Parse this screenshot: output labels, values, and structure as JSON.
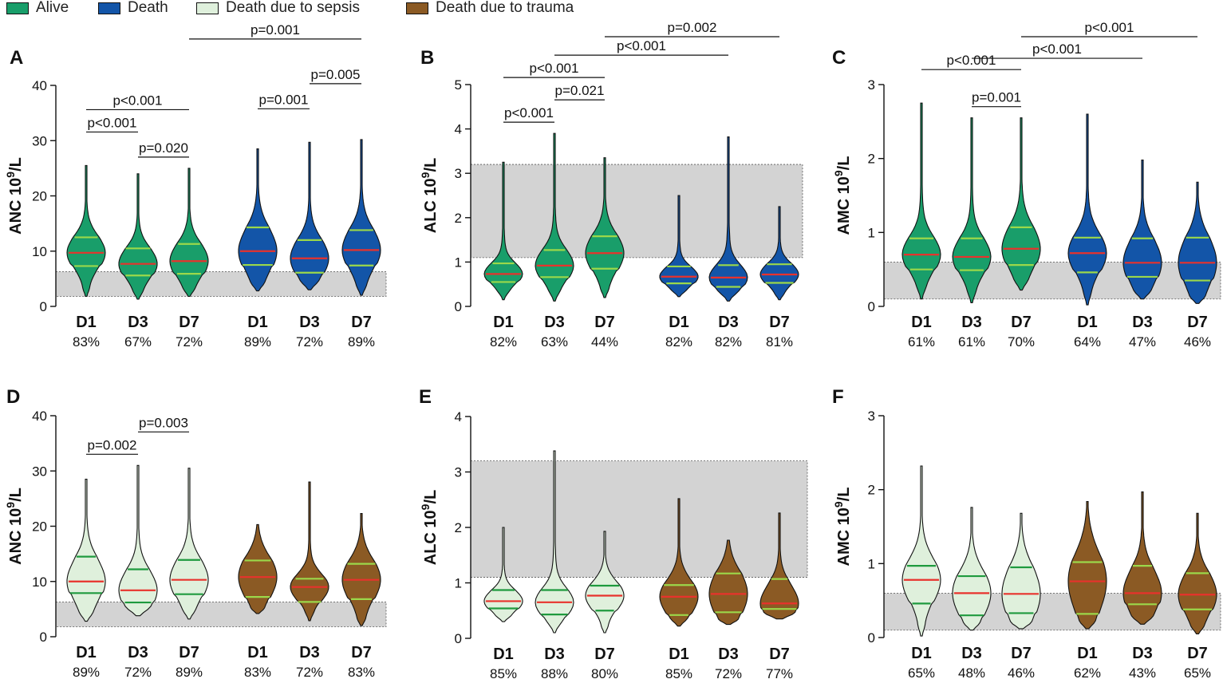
{
  "legend": {
    "entries": [
      {
        "label": "Alive",
        "color": "#199e6a"
      },
      {
        "label": "Death",
        "color": "#1355a8"
      },
      {
        "label": "Death due to sepsis",
        "color": "#dff0dc"
      },
      {
        "label": "Death due to trauma",
        "color": "#8b5a24"
      }
    ]
  },
  "colors": {
    "median_line": "#e8322c",
    "quartile_line_on_dark": "#9bd84a",
    "quartile_line_on_light": "#1f9a3e",
    "reference_band": "#d3d3d3"
  },
  "chart_data": [
    {
      "type": "violin",
      "panel": "A",
      "ylabel_main": "ANC 10",
      "ylabel_sup": "9",
      "ylabel_tail": "/L",
      "ylim": [
        0,
        40
      ],
      "yticks": [
        "0",
        "10",
        "20",
        "30",
        "40"
      ],
      "reference_band": [
        1.8,
        6.3
      ],
      "groups": [
        {
          "label": "D1",
          "percent": "83%",
          "series": "Alive",
          "min": 1.8,
          "q1": 7.3,
          "median": 9.7,
          "q3": 12.5,
          "max": 25.5
        },
        {
          "label": "D3",
          "percent": "67%",
          "series": "Alive",
          "min": 1.3,
          "q1": 5.6,
          "median": 7.7,
          "q3": 10.5,
          "max": 24.0
        },
        {
          "label": "D7",
          "percent": "72%",
          "series": "Alive",
          "min": 1.8,
          "q1": 5.9,
          "median": 8.2,
          "q3": 11.3,
          "max": 25.0
        },
        {
          "label": "D1",
          "percent": "89%",
          "series": "Death",
          "min": 2.8,
          "q1": 7.5,
          "median": 10.0,
          "q3": 14.3,
          "max": 28.5
        },
        {
          "label": "D3",
          "percent": "72%",
          "series": "Death",
          "min": 3.0,
          "q1": 6.1,
          "median": 8.7,
          "q3": 12.0,
          "max": 29.7
        },
        {
          "label": "D7",
          "percent": "89%",
          "series": "Death",
          "min": 2.0,
          "q1": 7.4,
          "median": 10.2,
          "q3": 13.8,
          "max": 30.2
        }
      ],
      "comparisons": [
        {
          "label": "p<0.001",
          "from": 0,
          "to": 1,
          "level": 1
        },
        {
          "label": "p=0.020",
          "from": 1,
          "to": 2,
          "level": 0
        },
        {
          "label": "p<0.001",
          "from": 0,
          "to": 2,
          "level": 2
        },
        {
          "label": "p=0.001",
          "from": 3,
          "to": 4,
          "level": 1
        },
        {
          "label": "p=0.005",
          "from": 4,
          "to": 5,
          "level": 2
        },
        {
          "label": "p=0.001",
          "from": 2,
          "to": 5,
          "level": 4
        }
      ]
    },
    {
      "type": "violin",
      "panel": "B",
      "ylabel_main": "ALC 10",
      "ylabel_sup": "9",
      "ylabel_tail": "/L",
      "ylim": [
        0,
        5
      ],
      "yticks": [
        "0",
        "1",
        "2",
        "3",
        "4",
        "5"
      ],
      "reference_band": [
        1.1,
        3.2
      ],
      "groups": [
        {
          "label": "D1",
          "percent": "82%",
          "series": "Alive",
          "min": 0.15,
          "q1": 0.55,
          "median": 0.73,
          "q3": 0.97,
          "max": 3.25
        },
        {
          "label": "D3",
          "percent": "63%",
          "series": "Alive",
          "min": 0.12,
          "q1": 0.66,
          "median": 0.92,
          "q3": 1.27,
          "max": 3.9
        },
        {
          "label": "D7",
          "percent": "44%",
          "series": "Alive",
          "min": 0.2,
          "q1": 0.85,
          "median": 1.2,
          "q3": 1.58,
          "max": 3.35
        },
        {
          "label": "D1",
          "percent": "82%",
          "series": "Death",
          "min": 0.22,
          "q1": 0.52,
          "median": 0.67,
          "q3": 0.9,
          "max": 2.5
        },
        {
          "label": "D3",
          "percent": "82%",
          "series": "Death",
          "min": 0.12,
          "q1": 0.44,
          "median": 0.65,
          "q3": 0.93,
          "max": 3.82
        },
        {
          "label": "D7",
          "percent": "81%",
          "series": "Death",
          "min": 0.15,
          "q1": 0.53,
          "median": 0.72,
          "q3": 0.95,
          "max": 2.25
        }
      ],
      "comparisons": [
        {
          "label": "p<0.001",
          "from": 0,
          "to": 1,
          "level": 0
        },
        {
          "label": "p=0.021",
          "from": 1,
          "to": 2,
          "level": 1
        },
        {
          "label": "p<0.001",
          "from": 0,
          "to": 2,
          "level": 2
        },
        {
          "label": "p<0.001",
          "from": 1,
          "to": 4,
          "level": 3
        },
        {
          "label": "p=0.002",
          "from": 2,
          "to": 5,
          "level": 4
        }
      ]
    },
    {
      "type": "violin",
      "panel": "C",
      "ylabel_main": "AMC 10",
      "ylabel_sup": "9",
      "ylabel_tail": "/L",
      "ylim": [
        0,
        3
      ],
      "yticks": [
        "0",
        "1",
        "2",
        "3"
      ],
      "reference_band": [
        0.1,
        0.6
      ],
      "groups": [
        {
          "label": "D1",
          "percent": "61%",
          "series": "Alive",
          "min": 0.1,
          "q1": 0.5,
          "median": 0.7,
          "q3": 0.92,
          "max": 2.75
        },
        {
          "label": "D3",
          "percent": "61%",
          "series": "Alive",
          "min": 0.05,
          "q1": 0.49,
          "median": 0.67,
          "q3": 0.92,
          "max": 2.55
        },
        {
          "label": "D7",
          "percent": "70%",
          "series": "Alive",
          "min": 0.22,
          "q1": 0.56,
          "median": 0.78,
          "q3": 1.07,
          "max": 2.55
        },
        {
          "label": "D1",
          "percent": "64%",
          "series": "Death",
          "min": 0.02,
          "q1": 0.46,
          "median": 0.72,
          "q3": 0.93,
          "max": 2.6
        },
        {
          "label": "D3",
          "percent": "47%",
          "series": "Death",
          "min": 0.1,
          "q1": 0.4,
          "median": 0.59,
          "q3": 0.92,
          "max": 1.98
        },
        {
          "label": "D7",
          "percent": "46%",
          "series": "Death",
          "min": 0.04,
          "q1": 0.35,
          "median": 0.59,
          "q3": 0.93,
          "max": 1.68
        }
      ],
      "comparisons": [
        {
          "label": "p=0.001",
          "from": 1,
          "to": 2,
          "level": 0
        },
        {
          "label": "p<0.001",
          "from": 0,
          "to": 2,
          "level": 1
        },
        {
          "label": "p<0.001",
          "from": 1,
          "to": 4,
          "level": 2
        },
        {
          "label": "p<0.001",
          "from": 2,
          "to": 5,
          "level": 3
        }
      ]
    },
    {
      "type": "violin",
      "panel": "D",
      "ylabel_main": "ANC 10",
      "ylabel_sup": "9",
      "ylabel_tail": "/L",
      "ylim": [
        0,
        40
      ],
      "yticks": [
        "0",
        "10",
        "20",
        "30",
        "40"
      ],
      "reference_band": [
        1.8,
        6.3
      ],
      "groups": [
        {
          "label": "D1",
          "percent": "89%",
          "series": "Death due to sepsis",
          "min": 2.8,
          "q1": 7.9,
          "median": 10.0,
          "q3": 14.5,
          "max": 28.5
        },
        {
          "label": "D3",
          "percent": "72%",
          "series": "Death due to sepsis",
          "min": 3.8,
          "q1": 6.2,
          "median": 8.4,
          "q3": 12.2,
          "max": 31.0
        },
        {
          "label": "D7",
          "percent": "89%",
          "series": "Death due to sepsis",
          "min": 3.2,
          "q1": 7.7,
          "median": 10.3,
          "q3": 13.9,
          "max": 30.5
        },
        {
          "label": "D1",
          "percent": "83%",
          "series": "Death due to trauma",
          "min": 4.2,
          "q1": 7.2,
          "median": 10.8,
          "q3": 13.8,
          "max": 20.3
        },
        {
          "label": "D3",
          "percent": "72%",
          "series": "Death due to trauma",
          "min": 2.9,
          "q1": 6.3,
          "median": 9.0,
          "q3": 10.5,
          "max": 28.0
        },
        {
          "label": "D7",
          "percent": "83%",
          "series": "Death due to trauma",
          "min": 2.0,
          "q1": 6.8,
          "median": 10.3,
          "q3": 13.2,
          "max": 22.3
        }
      ],
      "comparisons": [
        {
          "label": "p=0.002",
          "from": 0,
          "to": 1,
          "level": 0
        },
        {
          "label": "p=0.003",
          "from": 1,
          "to": 2,
          "level": 1
        }
      ]
    },
    {
      "type": "violin",
      "panel": "E",
      "ylabel_main": "ALC 10",
      "ylabel_sup": "9",
      "ylabel_tail": "/L",
      "ylim": [
        0,
        4
      ],
      "yticks": [
        "0",
        "1",
        "2",
        "3",
        "4"
      ],
      "reference_band": [
        1.1,
        3.2
      ],
      "groups": [
        {
          "label": "D1",
          "percent": "85%",
          "series": "Death due to sepsis",
          "min": 0.3,
          "q1": 0.54,
          "median": 0.67,
          "q3": 0.87,
          "max": 2.0
        },
        {
          "label": "D3",
          "percent": "88%",
          "series": "Death due to sepsis",
          "min": 0.1,
          "q1": 0.43,
          "median": 0.65,
          "q3": 0.87,
          "max": 3.38
        },
        {
          "label": "D7",
          "percent": "80%",
          "series": "Death due to sepsis",
          "min": 0.1,
          "q1": 0.5,
          "median": 0.77,
          "q3": 0.95,
          "max": 1.93
        },
        {
          "label": "D1",
          "percent": "85%",
          "series": "Death due to trauma",
          "min": 0.22,
          "q1": 0.42,
          "median": 0.75,
          "q3": 0.96,
          "max": 2.52
        },
        {
          "label": "D3",
          "percent": "72%",
          "series": "Death due to trauma",
          "min": 0.25,
          "q1": 0.47,
          "median": 0.8,
          "q3": 1.17,
          "max": 1.77
        },
        {
          "label": "D7",
          "percent": "77%",
          "series": "Death due to trauma",
          "min": 0.35,
          "q1": 0.53,
          "median": 0.63,
          "q3": 1.07,
          "max": 2.26
        }
      ],
      "comparisons": []
    },
    {
      "type": "violin",
      "panel": "F",
      "ylabel_main": "AMC 10",
      "ylabel_sup": "9",
      "ylabel_tail": "/L",
      "ylim": [
        0,
        3
      ],
      "yticks": [
        "0",
        "1",
        "2",
        "3"
      ],
      "reference_band": [
        0.1,
        0.6
      ],
      "groups": [
        {
          "label": "D1",
          "percent": "65%",
          "series": "Death due to sepsis",
          "min": 0.02,
          "q1": 0.46,
          "median": 0.78,
          "q3": 0.97,
          "max": 2.32
        },
        {
          "label": "D3",
          "percent": "48%",
          "series": "Death due to sepsis",
          "min": 0.1,
          "q1": 0.3,
          "median": 0.6,
          "q3": 0.83,
          "max": 1.76
        },
        {
          "label": "D7",
          "percent": "46%",
          "series": "Death due to sepsis",
          "min": 0.12,
          "q1": 0.33,
          "median": 0.59,
          "q3": 0.95,
          "max": 1.68
        },
        {
          "label": "D1",
          "percent": "62%",
          "series": "Death due to trauma",
          "min": 0.12,
          "q1": 0.32,
          "median": 0.76,
          "q3": 1.02,
          "max": 1.84
        },
        {
          "label": "D3",
          "percent": "43%",
          "series": "Death due to trauma",
          "min": 0.18,
          "q1": 0.45,
          "median": 0.6,
          "q3": 0.97,
          "max": 1.97
        },
        {
          "label": "D7",
          "percent": "65%",
          "series": "Death due to trauma",
          "min": 0.05,
          "q1": 0.38,
          "median": 0.58,
          "q3": 0.87,
          "max": 1.68
        }
      ],
      "comparisons": []
    }
  ]
}
